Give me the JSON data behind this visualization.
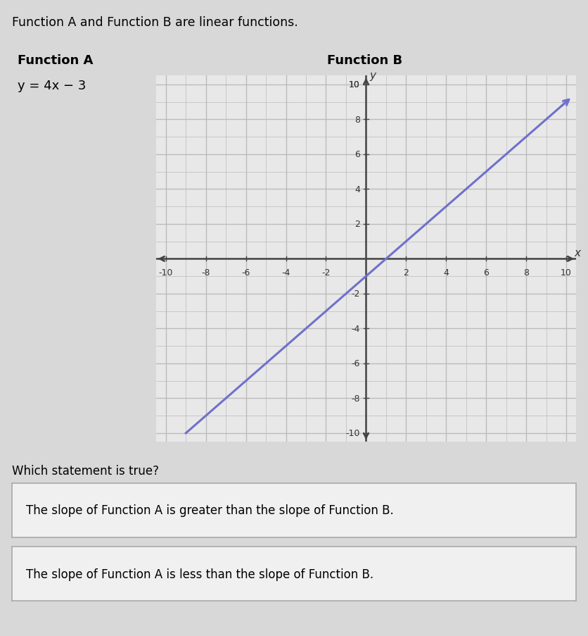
{
  "page_title": "Function A and Function B are linear functions.",
  "func_a_label": "Function A",
  "func_a_eq": "y = 4x − 3",
  "func_b_label": "Function B",
  "func_b_slope": 1,
  "func_b_intercept": -1,
  "line_color": "#7070cc",
  "axis_range": [
    -10,
    10
  ],
  "question": "Which statement is true?",
  "choice1": "The slope of Function A is greater than the slope of Function B.",
  "choice2": "The slope of Function A is less than the slope of Function B.",
  "background_color": "#d8d8d8",
  "graph_bg": "#e8e8e8",
  "grid_color": "#bbbbbb",
  "choice_bg": "#f0f0f0",
  "choice_border": "#aaaaaa"
}
